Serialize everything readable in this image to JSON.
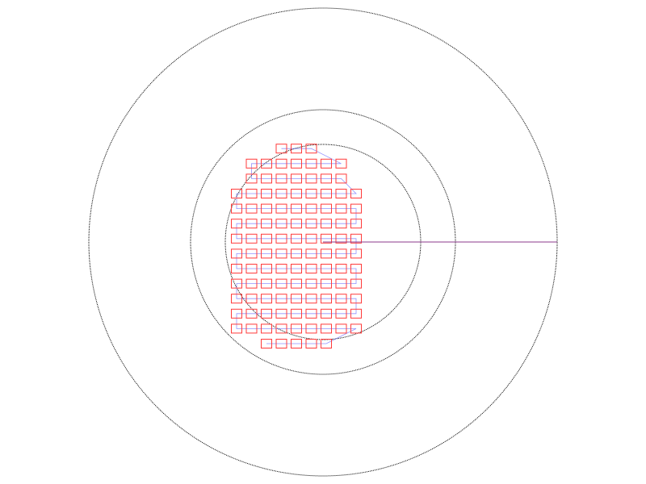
{
  "diagram": {
    "rings": [
      {
        "name": "outer-ring",
        "color": "#000000"
      },
      {
        "name": "middle-ring",
        "color": "#000000"
      },
      {
        "name": "inner-ring",
        "color": "#000000"
      }
    ],
    "radial_line_color": "#8b3a8b",
    "cell_grid": {
      "cell_color": "#ff3b3b",
      "path_color": "#3b3bff",
      "rows": [
        {
          "start_col": 3,
          "count": 3
        },
        {
          "start_col": 1,
          "count": 7
        },
        {
          "start_col": 1,
          "count": 7
        },
        {
          "start_col": 0,
          "count": 9
        },
        {
          "start_col": 0,
          "count": 9
        },
        {
          "start_col": 0,
          "count": 9
        },
        {
          "start_col": 0,
          "count": 9
        },
        {
          "start_col": 0,
          "count": 9
        },
        {
          "start_col": 0,
          "count": 9
        },
        {
          "start_col": 0,
          "count": 9
        },
        {
          "start_col": 0,
          "count": 9
        },
        {
          "start_col": 0,
          "count": 9
        },
        {
          "start_col": 0,
          "count": 9
        },
        {
          "start_col": 2,
          "count": 5
        }
      ]
    }
  }
}
